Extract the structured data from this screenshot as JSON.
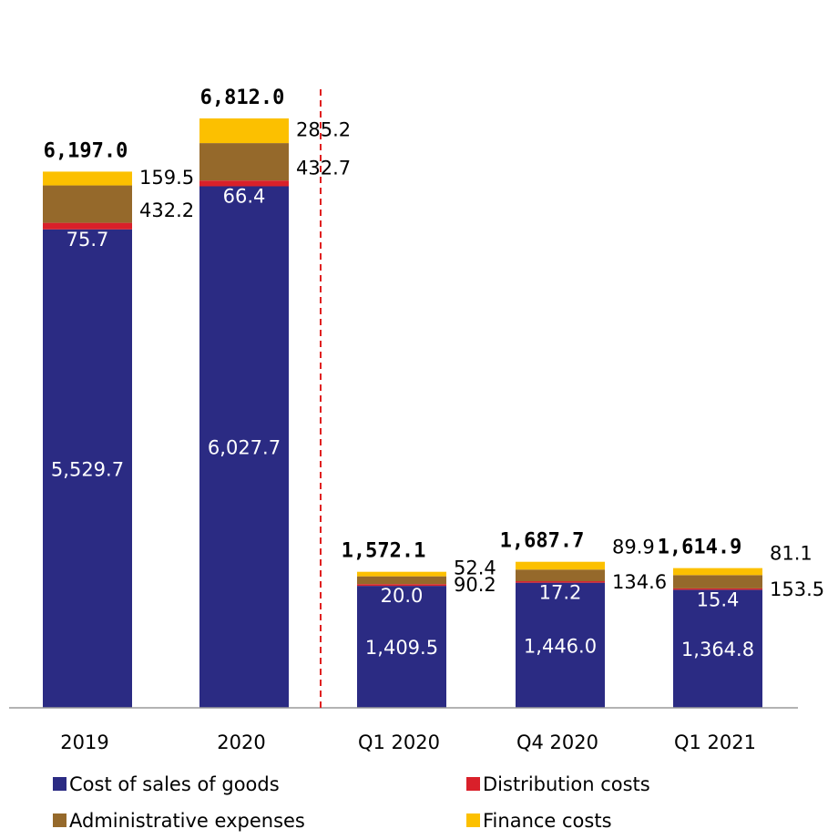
{
  "chart_data": {
    "type": "bar",
    "stacked": true,
    "title": "",
    "xlabel": "",
    "ylabel": "",
    "categories": [
      "2019",
      "2020",
      "Q1 2020",
      "Q4 2020",
      "Q1 2021"
    ],
    "series": [
      {
        "name": "Cost of sales of goods",
        "color": "#2B2B83",
        "values": [
          5529.7,
          6027.7,
          1409.5,
          1446.0,
          1364.8
        ],
        "labels": [
          "5,529.7",
          "6,027.7",
          "1,409.5",
          "1,446.0",
          "1,364.8"
        ]
      },
      {
        "name": "Distribution costs",
        "color": "#D9202A",
        "values": [
          75.7,
          66.4,
          20.0,
          17.2,
          15.4
        ],
        "labels": [
          "75.7",
          "66.4",
          "20.0",
          "17.2",
          "15.4"
        ]
      },
      {
        "name": "Administrative expenses",
        "color": "#95692B",
        "values": [
          432.2,
          432.7,
          90.2,
          134.6,
          153.5
        ],
        "labels": [
          "432.2",
          "432.7",
          "90.2",
          "134.6",
          "153.5"
        ]
      },
      {
        "name": "Finance costs",
        "color": "#FCC000",
        "values": [
          159.5,
          285.2,
          52.4,
          89.9,
          81.1
        ],
        "labels": [
          "159.5",
          "285.2",
          "52.4",
          "89.9",
          "81.1"
        ]
      }
    ],
    "totals": [
      6197.0,
      6812.0,
      1572.1,
      1687.7,
      1614.9
    ],
    "total_labels": [
      "6,197.0",
      "6,812.0",
      "1,572.1",
      "1,687.7",
      "1,614.9"
    ],
    "ylim": [
      0,
      7200
    ],
    "grid": false,
    "legend_position": "bottom",
    "separator": "dashed red line between 2020 and Q1 2020"
  }
}
